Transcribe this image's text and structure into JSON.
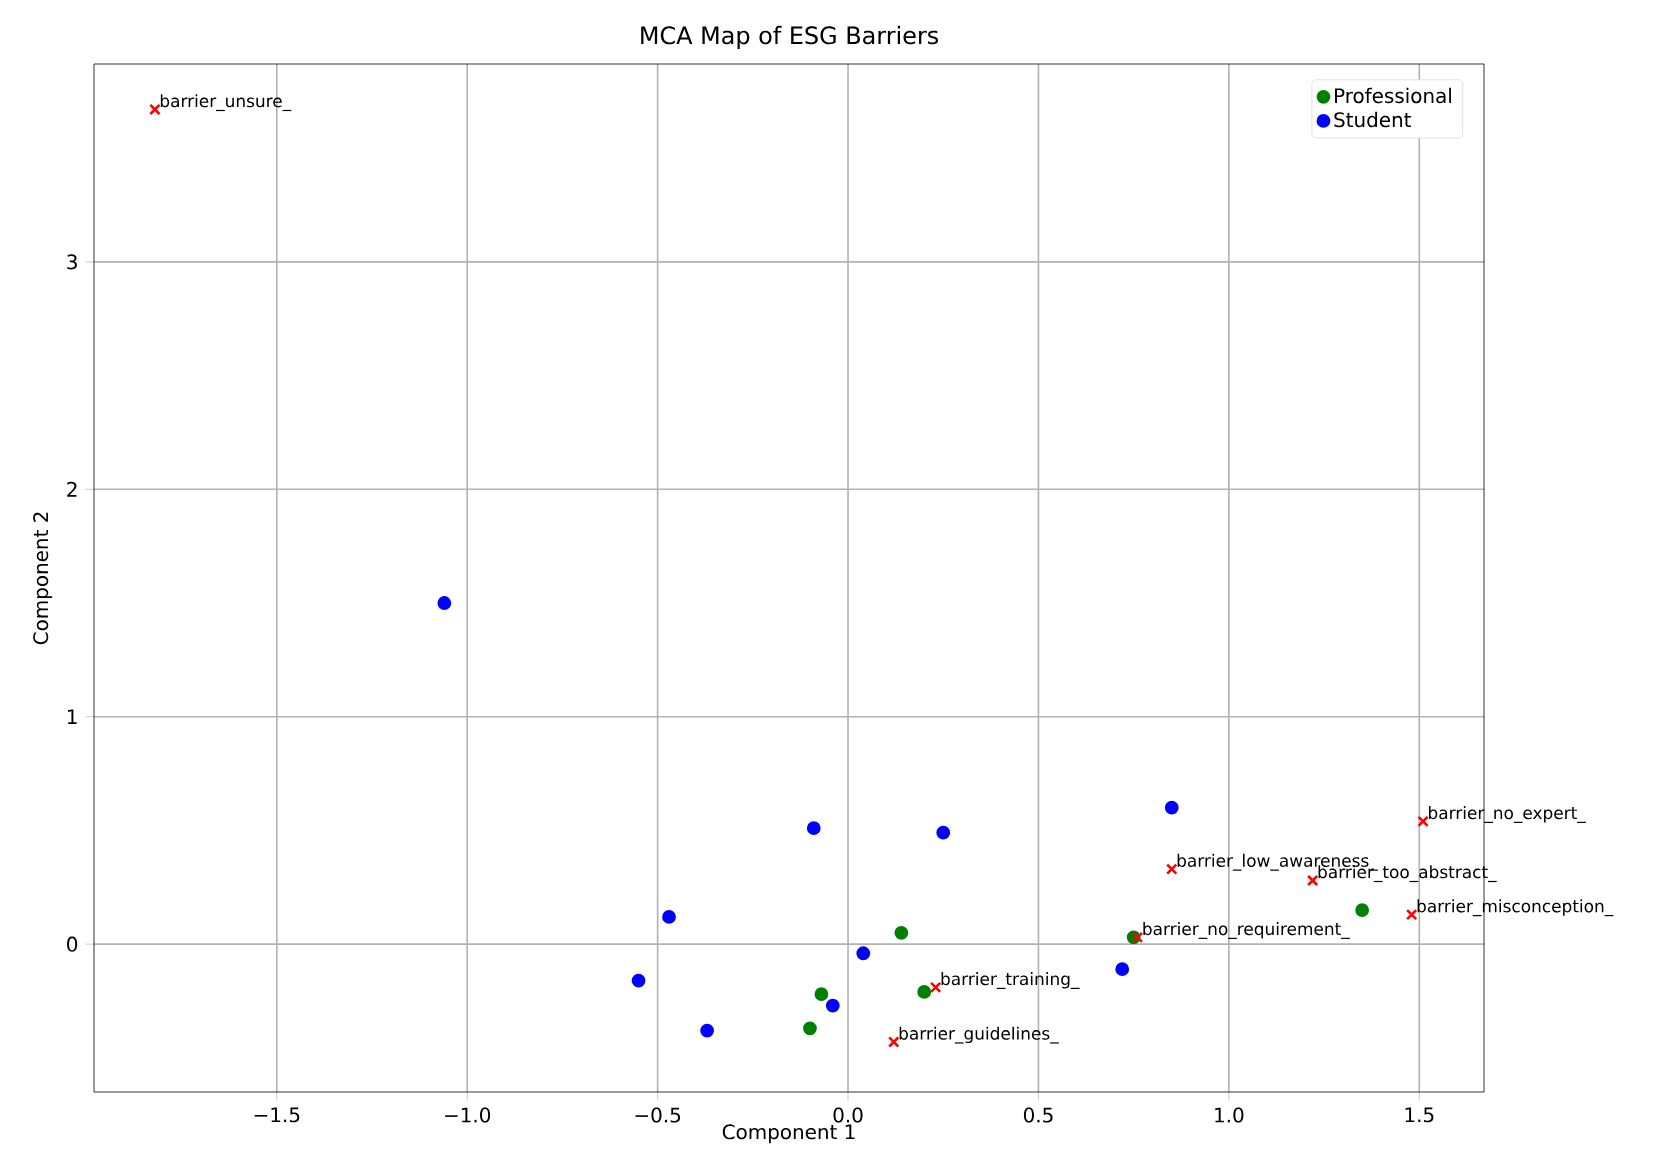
{
  "chart_data": {
    "type": "scatter",
    "title": "MCA Map of ESG Barriers",
    "xlabel": "Component 1",
    "ylabel": "Component 2",
    "xlim": [
      -1.98,
      1.67
    ],
    "ylim": [
      -0.65,
      3.87
    ],
    "xticks": [
      {
        "value": -1.5,
        "label": "−1.5"
      },
      {
        "value": -1.0,
        "label": "−1.0"
      },
      {
        "value": -0.5,
        "label": "−0.5"
      },
      {
        "value": 0.0,
        "label": "0.0"
      },
      {
        "value": 0.5,
        "label": "0.5"
      },
      {
        "value": 1.0,
        "label": "1.0"
      },
      {
        "value": 1.5,
        "label": "1.5"
      }
    ],
    "yticks": [
      0,
      1,
      2,
      3
    ],
    "grid": true,
    "legend": "top right",
    "series": [
      {
        "name": "Professional",
        "color": "#008000",
        "marker": "circle",
        "x": [
          0.14,
          -0.07,
          -0.1,
          0.2,
          0.75,
          1.35
        ],
        "values": [
          0.05,
          -0.22,
          -0.37,
          -0.21,
          0.03,
          0.15
        ]
      },
      {
        "name": "Student",
        "color": "#0000ff",
        "marker": "circle",
        "x": [
          -1.06,
          0.85,
          -0.09,
          0.25,
          -0.47,
          -0.55,
          0.04,
          -0.04,
          -0.37,
          0.72
        ],
        "values": [
          1.5,
          0.6,
          0.51,
          0.49,
          0.12,
          -0.16,
          -0.04,
          -0.27,
          -0.38,
          -0.11
        ]
      },
      {
        "color": "#ff0000",
        "marker": "cross",
        "x": [
          -1.82,
          0.23,
          0.12,
          0.76,
          0.85,
          1.22,
          1.48,
          1.51
        ],
        "values": [
          3.67,
          -0.19,
          -0.43,
          0.03,
          0.33,
          0.28,
          0.13,
          0.54
        ]
      }
    ],
    "annotations": [
      {
        "text": "barrier_unsure_",
        "x": -1.82,
        "y": 3.67
      },
      {
        "text": "barrier_training_",
        "x": 0.23,
        "y": -0.19
      },
      {
        "text": "barrier_guidelines_",
        "x": 0.12,
        "y": -0.43
      },
      {
        "text": "barrier_no_requirement_",
        "x": 0.76,
        "y": 0.03
      },
      {
        "text": "barrier_low_awareness_",
        "x": 0.85,
        "y": 0.33
      },
      {
        "text": "barrier_too_abstract_",
        "x": 1.22,
        "y": 0.28
      },
      {
        "text": "barrier_misconception_",
        "x": 1.48,
        "y": 0.13
      },
      {
        "text": "barrier_no_expert_",
        "x": 1.51,
        "y": 0.54
      }
    ]
  }
}
